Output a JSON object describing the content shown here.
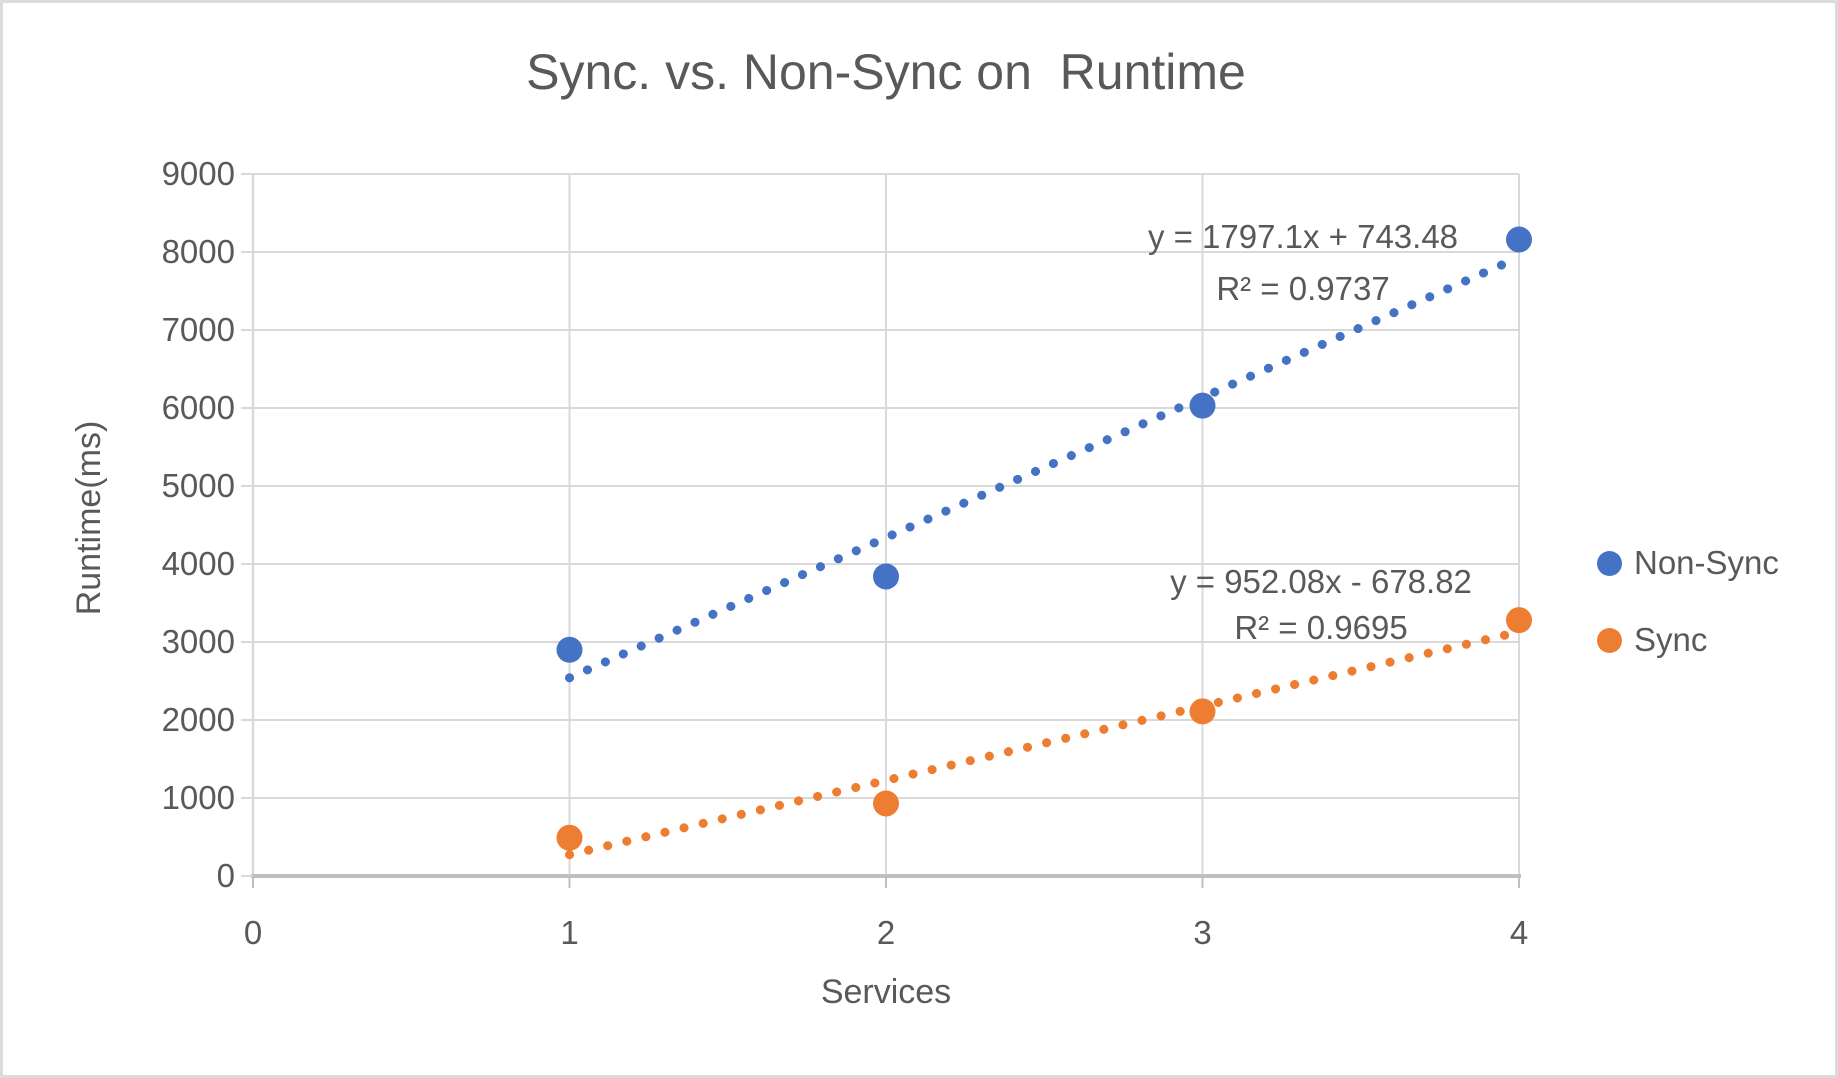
{
  "title": "Sync. vs. Non-Sync on  Runtime",
  "colors": {
    "non_sync": "#4472C4",
    "sync": "#ED7D31",
    "text": "#595959",
    "gridline": "#D9D9D9",
    "axis_line": "#BFBFBF"
  },
  "chart_data": {
    "type": "scatter",
    "title": "Sync. vs. Non-Sync on  Runtime",
    "xlabel": "Services",
    "ylabel": "Runtime(ms)",
    "xlim": [
      0,
      4
    ],
    "ylim": [
      0,
      9000
    ],
    "x_ticks": [
      0,
      1,
      2,
      3,
      4
    ],
    "y_ticks": [
      0,
      1000,
      2000,
      3000,
      4000,
      5000,
      6000,
      7000,
      8000,
      9000
    ],
    "grid": true,
    "legend_position": "right",
    "series": [
      {
        "name": "Non-Sync",
        "color": "#4472C4",
        "x": [
          1,
          2,
          3,
          4
        ],
        "y": [
          2900,
          3840,
          6030,
          8160
        ],
        "trendline": {
          "style": "dotted",
          "slope": 1797.1,
          "intercept": 743.48,
          "x_start": 1,
          "x_end": 4,
          "equation": "y = 1797.1x + 743.48",
          "r2": "R² = 0.9737"
        }
      },
      {
        "name": "Sync",
        "color": "#ED7D31",
        "x": [
          1,
          2,
          3,
          4
        ],
        "y": [
          490,
          930,
          2110,
          3280
        ],
        "trendline": {
          "style": "dotted",
          "slope": 952.08,
          "intercept": -678.82,
          "x_start": 1,
          "x_end": 4,
          "equation": "y = 952.08x - 678.82",
          "r2": "R² = 0.9695"
        }
      }
    ]
  },
  "legend": {
    "items": [
      {
        "label": "Non-Sync"
      },
      {
        "label": "Sync"
      }
    ]
  }
}
